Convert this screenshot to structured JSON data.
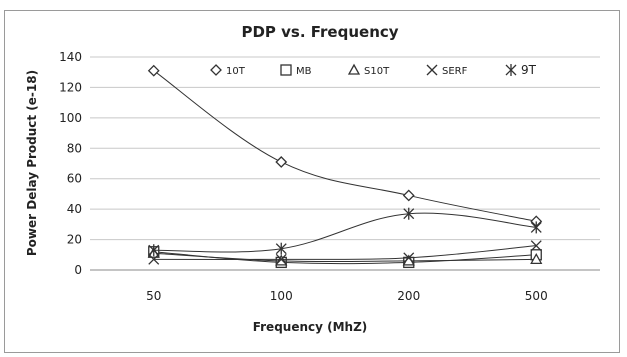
{
  "chart_data": {
    "type": "line",
    "title": "PDP vs. Frequency",
    "xlabel": "Frequency (MhZ)",
    "ylabel": "Power Delay Product (e-18)",
    "categories": [
      "50",
      "100",
      "200",
      "500"
    ],
    "ylim": [
      0,
      140
    ],
    "yticks": [
      0,
      20,
      40,
      60,
      80,
      100,
      120,
      140
    ],
    "grid": true,
    "legend_position": "top",
    "series": [
      {
        "name": "10T",
        "marker": "diamond",
        "values": [
          131,
          71,
          49,
          32
        ]
      },
      {
        "name": "MB",
        "marker": "square",
        "values": [
          12,
          5,
          5,
          10
        ]
      },
      {
        "name": "S10T",
        "marker": "triangle",
        "values": [
          11,
          6,
          6,
          7
        ]
      },
      {
        "name": "SERF",
        "marker": "x",
        "values": [
          7,
          7,
          8,
          16
        ]
      },
      {
        "name": "9T",
        "marker": "star",
        "values": [
          13,
          14,
          37,
          28
        ]
      }
    ]
  },
  "colors": {
    "line": "#333333",
    "grid": "#c8c8c8",
    "frame": "#9a9a9a"
  }
}
